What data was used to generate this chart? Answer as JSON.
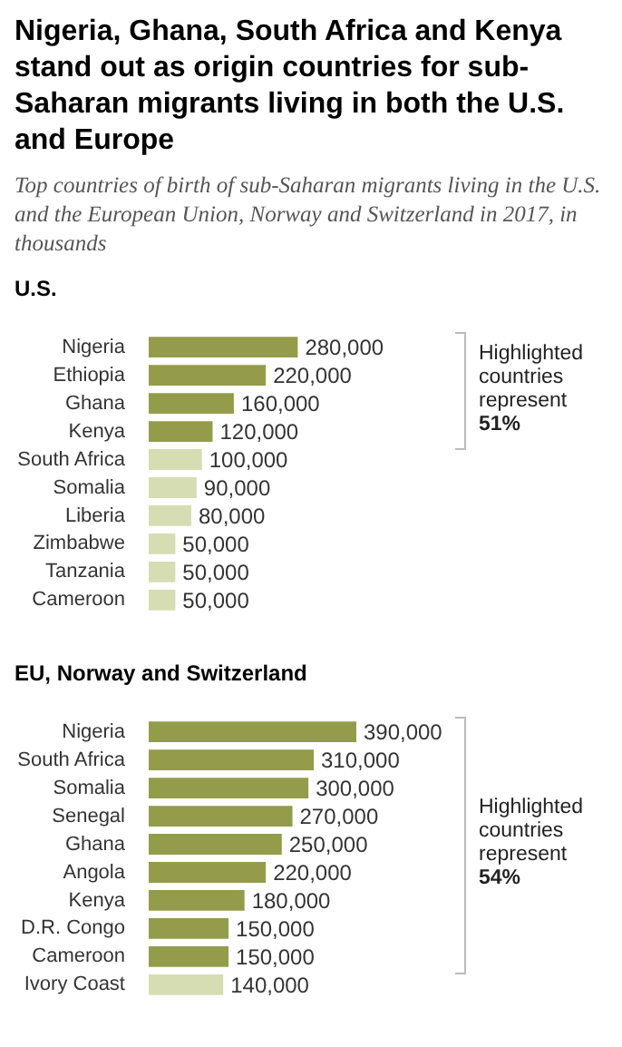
{
  "chart_data": [
    {
      "type": "bar",
      "orientation": "horizontal",
      "tick_labels": "y",
      "value_labels": [
        "280,000",
        "220,000",
        "160,000",
        "120,000",
        "100,000",
        "90,000",
        "80,000",
        "50,000",
        "50,000",
        "50,000"
      ],
      "title": "Nigeria, Ghana, South Africa and Kenya stand out as origin countries for sub-Saharan migrants living in both the U.S. and Europe",
      "subtitle": "Top countries of birth of sub-Saharan migrants living in the U.S. and the European Union, Norway and Switzerland in 2017, in thousands",
      "annotations": [
        "U.S.",
        "Highlighted countries represent 51%"
      ],
      "categories": [
        "Nigeria",
        "Ethiopia",
        "Ghana",
        "Kenya",
        "South Africa",
        "Somalia",
        "Liberia",
        "Zimbabwe",
        "Tanzania",
        "Cameroon"
      ],
      "values": [
        280000,
        220000,
        160000,
        120000,
        100000,
        90000,
        80000,
        50000,
        50000,
        50000
      ],
      "colors": [
        "#949b4a",
        "#949b4a",
        "#949b4a",
        "#949b4a",
        "#d6ddb2",
        "#d6ddb2",
        "#d6ddb2",
        "#d6ddb2",
        "#d6ddb2",
        "#d6ddb2"
      ]
    },
    {
      "type": "bar",
      "orientation": "horizontal",
      "tick_labels": "y",
      "value_labels": [
        "390,000",
        "310,000",
        "300,000",
        "270,000",
        "250,000",
        "220,000",
        "180,000",
        "150,000",
        "150,000",
        "140,000"
      ],
      "title": "EU, Norway and Switzerland",
      "annotations": [
        "Highlighted countries represent 54%"
      ],
      "categories": [
        "Nigeria",
        "South Africa",
        "Somalia",
        "Senegal",
        "Ghana",
        "Angola",
        "Kenya",
        "D.R. Congo",
        "Cameroon",
        "Ivory Coast"
      ],
      "values": [
        390000,
        310000,
        300000,
        270000,
        250000,
        220000,
        180000,
        150000,
        150000,
        140000
      ],
      "colors": [
        "#949b4a",
        "#949b4a",
        "#949b4a",
        "#949b4a",
        "#949b4a",
        "#949b4a",
        "#949b4a",
        "#949b4a",
        "#949b4a",
        "#d6ddb2"
      ]
    }
  ]
}
